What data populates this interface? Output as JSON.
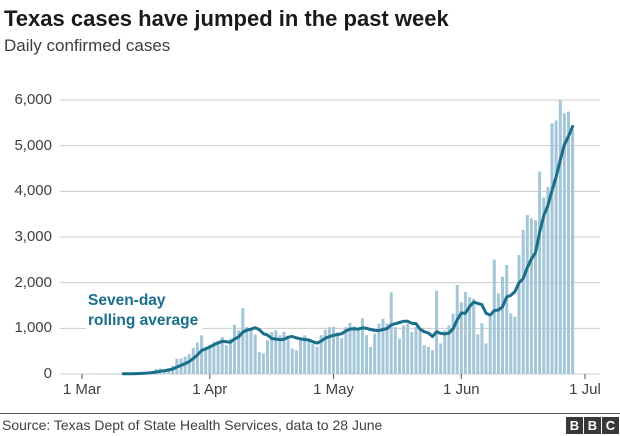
{
  "header": {
    "title": "Texas cases have jumped in the past week",
    "subtitle": "Daily confirmed cases"
  },
  "chart_data": {
    "type": "bar",
    "title": "Texas cases have jumped in the past week",
    "subtitle": "Daily confirmed cases",
    "xlabel": "",
    "ylabel": "",
    "ylim": [
      0,
      6000
    ],
    "grid": "horizontal",
    "start_date": "1 Mar",
    "end_date": "28 Jun",
    "x_ticks": [
      {
        "label": "1 Mar",
        "day": 0
      },
      {
        "label": "1 Apr",
        "day": 31
      },
      {
        "label": "1 May",
        "day": 61
      },
      {
        "label": "1 Jun",
        "day": 92
      },
      {
        "label": "1 Jul",
        "day": 122
      }
    ],
    "y_ticks": [
      {
        "label": "0",
        "value": 0
      },
      {
        "label": "1,000",
        "value": 1000
      },
      {
        "label": "2,000",
        "value": 2000
      },
      {
        "label": "3,000",
        "value": 3000
      },
      {
        "label": "4,000",
        "value": 4000
      },
      {
        "label": "5,000",
        "value": 5000
      },
      {
        "label": "6,000",
        "value": 6000
      }
    ],
    "annotation": {
      "line1": "Seven-day",
      "line2": "rolling average"
    },
    "colors": {
      "bar": "#a3c6d8",
      "line": "#1a6e8a",
      "gridline": "#cccccc",
      "tick": "#555555"
    },
    "series": [
      {
        "name": "Daily confirmed cases",
        "render": "bar",
        "values": [
          0,
          0,
          0,
          1,
          1,
          2,
          3,
          3,
          5,
          7,
          6,
          9,
          14,
          16,
          21,
          28,
          52,
          69,
          111,
          120,
          110,
          128,
          180,
          332,
          340,
          381,
          435,
          570,
          690,
          848,
          589,
          638,
          700,
          730,
          810,
          630,
          775,
          1080,
          957,
          1441,
          1029,
          957,
          862,
          480,
          450,
          739,
          920,
          957,
          848,
          920,
          812,
          558,
          522,
          775,
          848,
          775,
          663,
          599,
          850,
          970,
          1030,
          1033,
          911,
          784,
          1026,
          1121,
          1045,
          968,
          1219,
          848,
          594,
          884,
          1101,
          1210,
          1101,
          1790,
          1029,
          775,
          1065,
          1101,
          920,
          1029,
          957,
          630,
          594,
          522,
          1826,
          667,
          957,
          1065,
          1319,
          1949,
          1572,
          1793,
          1681,
          1644,
          867,
          1110,
          670,
          1255,
          2504,
          1766,
          2131,
          2387,
          1328,
          1254,
          2606,
          3153,
          3482,
          3409,
          3372,
          4430,
          3866,
          4098,
          5489,
          5551,
          5996,
          5707,
          5747,
          5357
        ]
      },
      {
        "name": "Seven-day rolling average",
        "render": "line",
        "derived_from": "7-day rolling mean of Daily confirmed cases"
      }
    ]
  },
  "footer": {
    "source": "Source: Texas Dept of State Health Services, data to 28 June",
    "logo_letters": [
      "B",
      "B",
      "C"
    ]
  }
}
